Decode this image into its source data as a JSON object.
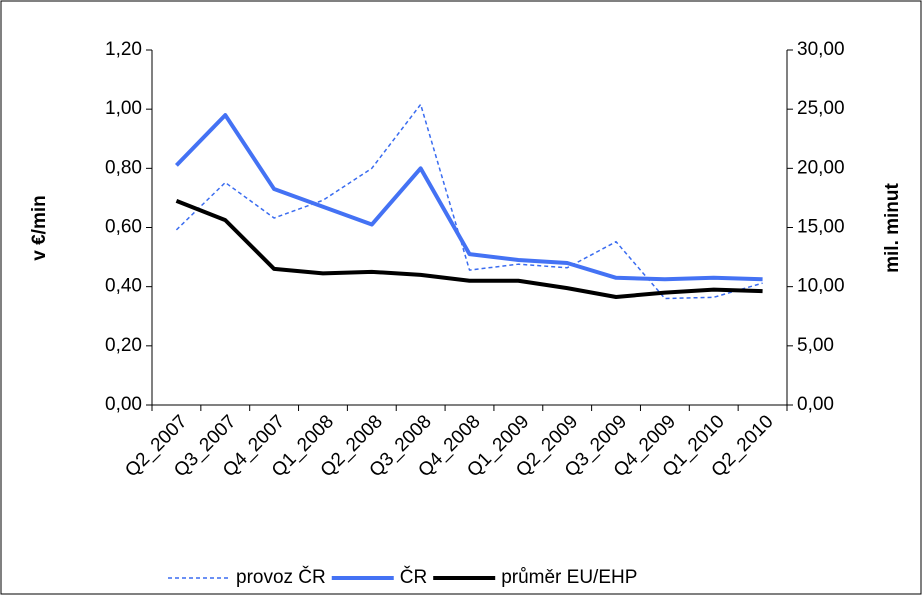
{
  "chart_data": {
    "type": "line",
    "categories": [
      "Q2_2007",
      "Q3_2007",
      "Q4_2007",
      "Q1_2008",
      "Q2_2008",
      "Q3_2008",
      "Q4_2008",
      "Q1_2009",
      "Q2_2009",
      "Q3_2009",
      "Q4_2009",
      "Q1_2010",
      "Q2_2010"
    ],
    "series": [
      {
        "name": "provoz ČR",
        "color": "#3a6cf0",
        "axis": "y2",
        "dashed": true,
        "width": 1.5,
        "values": [
          14.8,
          18.8,
          15.8,
          17.3,
          20.0,
          25.4,
          11.4,
          11.9,
          11.6,
          13.8,
          9.0,
          9.1,
          10.3
        ]
      },
      {
        "name": "ČR",
        "color": "#4472f4",
        "dashed": false,
        "width": 4,
        "values": [
          0.81,
          0.98,
          0.73,
          0.67,
          0.61,
          0.8,
          0.51,
          0.49,
          0.48,
          0.43,
          0.425,
          0.43,
          0.425
        ]
      },
      {
        "name": "průměr EU/EHP",
        "color": "#000000",
        "dashed": false,
        "width": 4,
        "values": [
          0.69,
          0.625,
          0.46,
          0.445,
          0.45,
          0.44,
          0.42,
          0.42,
          0.395,
          0.365,
          0.38,
          0.39,
          0.385
        ]
      }
    ],
    "ylabel": "v €/min",
    "y2label": "mil. minut",
    "ylim": [
      0,
      1.2
    ],
    "yticks": [
      {
        "value": 0,
        "label": "0,00"
      },
      {
        "value": 0.2,
        "label": "0,20"
      },
      {
        "value": 0.4,
        "label": "0,40"
      },
      {
        "value": 0.6,
        "label": "0,60"
      },
      {
        "value": 0.8,
        "label": "0,80"
      },
      {
        "value": 1.0,
        "label": "1,00"
      },
      {
        "value": 1.2,
        "label": "1,20"
      }
    ],
    "y2lim": [
      0,
      30
    ],
    "y2ticks": [
      {
        "value": 0,
        "label": "0,00"
      },
      {
        "value": 5,
        "label": "5,00"
      },
      {
        "value": 10,
        "label": "10,00"
      },
      {
        "value": 15,
        "label": "15,00"
      },
      {
        "value": 20,
        "label": "20,00"
      },
      {
        "value": 25,
        "label": "25,00"
      },
      {
        "value": 30,
        "label": "30,00"
      }
    ],
    "legend": "bottom"
  }
}
